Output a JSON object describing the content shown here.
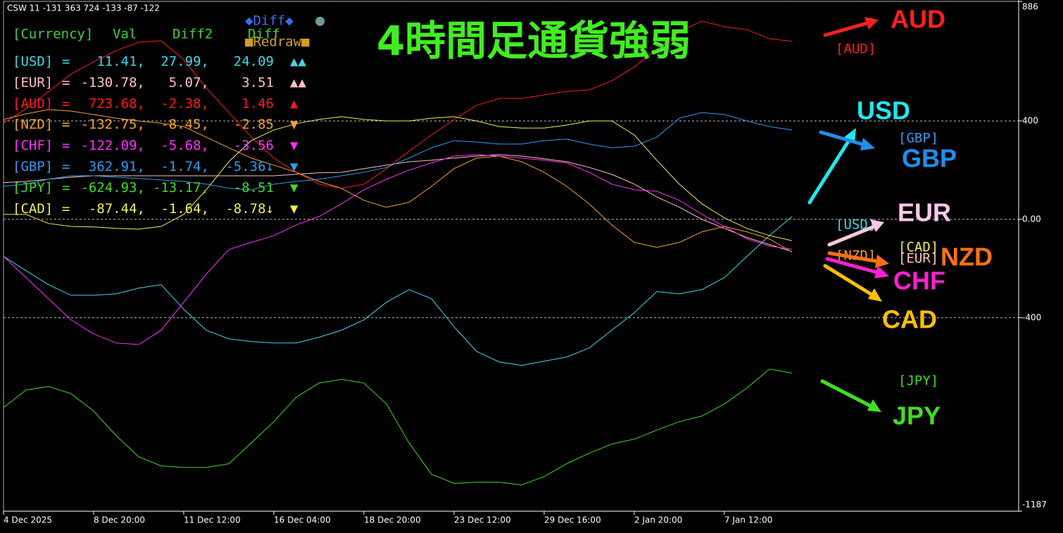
{
  "header": "CSW 11 -131 363 724 -133 -87 -122",
  "title": "4時間足通貨強弱",
  "buttons": [
    "◆Diff◆",
    "●",
    "■Redraw■"
  ],
  "table": {
    "columns": [
      "[Currency]",
      "Val",
      "Diff2",
      "Diff"
    ],
    "rows": [
      [
        "=",
        "11.41,",
        "27.99,",
        "24.09",
        "▲▲"
      ],
      [
        "=",
        "-130.78,",
        "5.07,",
        "3.51",
        "▲▲"
      ],
      [
        "=",
        "723.68,",
        "-2.38,",
        "1.46",
        "▲"
      ],
      [
        "=",
        "-132.75,",
        "-8.45,",
        "-2.85",
        "▼"
      ],
      [
        "=",
        "-122.09,",
        "-5.68,",
        "-3.56",
        "▼"
      ],
      [
        "=",
        "362.91,",
        "-1.74,",
        "-5.36↓",
        "▼"
      ],
      [
        "=",
        "-624.93,",
        "-13.17,",
        "-8.51",
        "▼"
      ],
      [
        "=",
        "-87.44,",
        "-1.64,",
        "-8.78↓",
        "▼"
      ]
    ]
  },
  "annotations": [
    "AUD",
    "USD",
    "GBP",
    "EUR",
    "NZD",
    "CHF",
    "CAD",
    "JPY"
  ],
  "chart_data": {
    "type": "line",
    "categories": [
      "4 Dec 2025",
      null,
      null,
      null,
      "8 Dec 20:00",
      null,
      null,
      null,
      "11 Dec 12:00",
      null,
      null,
      null,
      "16 Dec 04:00",
      null,
      null,
      null,
      "18 Dec 20:00",
      null,
      null,
      null,
      "23 Dec 12:00",
      null,
      null,
      null,
      "29 Dec 16:00",
      null,
      null,
      null,
      "2 Jan 20:00",
      null,
      null,
      null,
      "7 Jan 12:00",
      null,
      null,
      null
    ],
    "series": [
      {
        "name": "[USD]",
        "color": "#3fd8e8",
        "values": [
          -151,
          -209,
          -266,
          -309,
          -309,
          -303,
          -280,
          -266,
          -366,
          -451,
          -486,
          -497,
          -503,
          -503,
          -480,
          -451,
          -409,
          -337,
          -286,
          -323,
          -437,
          -537,
          -580,
          -594,
          -577,
          -560,
          -523,
          -451,
          -380,
          -294,
          -303,
          -286,
          -237,
          -151,
          -66,
          11
        ]
      },
      {
        "name": "[EUR]",
        "color": "#ffc0c0",
        "values": [
          149,
          154,
          163,
          171,
          177,
          177,
          177,
          177,
          177,
          177,
          177,
          177,
          177,
          183,
          189,
          191,
          206,
          220,
          234,
          240,
          249,
          257,
          263,
          257,
          246,
          234,
          211,
          183,
          143,
          91,
          49,
          0,
          -37,
          -74,
          -103,
          -131
        ]
      },
      {
        "name": "[AUD]",
        "color": "#ff1a1a",
        "values": [
          391,
          449,
          520,
          591,
          640,
          686,
          720,
          726,
          649,
          534,
          434,
          334,
          249,
          191,
          143,
          126,
          143,
          206,
          277,
          343,
          406,
          463,
          491,
          491,
          506,
          520,
          526,
          563,
          620,
          691,
          763,
          806,
          783,
          771,
          734,
          724
        ]
      },
      {
        "name": "[NZD]",
        "color": "#f5a030",
        "values": [
          406,
          429,
          446,
          440,
          426,
          411,
          400,
          391,
          377,
          334,
          291,
          249,
          220,
          191,
          154,
          126,
          77,
          49,
          69,
          134,
          206,
          249,
          257,
          234,
          191,
          134,
          63,
          -23,
          -94,
          -114,
          -94,
          -51,
          -29,
          -51,
          -80,
          -133
        ]
      },
      {
        "name": "[CHF]",
        "color": "#ff30ff",
        "values": [
          -151,
          -237,
          -323,
          -409,
          -466,
          -503,
          -509,
          -451,
          -337,
          -223,
          -123,
          -94,
          -66,
          -23,
          11,
          63,
          120,
          163,
          200,
          229,
          257,
          263,
          257,
          249,
          240,
          229,
          191,
          143,
          120,
          114,
          77,
          20,
          -29,
          -80,
          -109,
          -122
        ]
      },
      {
        "name": "[GBP]",
        "color": "#2e9cf0",
        "values": [
          134,
          143,
          163,
          177,
          177,
          171,
          166,
          160,
          154,
          143,
          126,
          120,
          143,
          154,
          163,
          177,
          191,
          211,
          249,
          291,
          320,
          314,
          306,
          306,
          320,
          326,
          306,
          291,
          297,
          334,
          411,
          434,
          426,
          400,
          377,
          363
        ]
      },
      {
        "name": "[JPY]",
        "color": "#3ddc20",
        "values": [
          -766,
          -694,
          -680,
          -709,
          -780,
          -880,
          -966,
          -1003,
          -1009,
          -1009,
          -994,
          -909,
          -823,
          -723,
          -666,
          -651,
          -666,
          -751,
          -909,
          -1037,
          -1074,
          -1069,
          -1069,
          -1080,
          -1046,
          -994,
          -951,
          -914,
          -894,
          -857,
          -823,
          -800,
          -751,
          -686,
          -609,
          -625
        ]
      },
      {
        "name": "[CAD]",
        "color": "#f0f050",
        "values": [
          20,
          20,
          -17,
          -29,
          -31,
          -37,
          -40,
          -29,
          20,
          120,
          234,
          320,
          363,
          389,
          406,
          417,
          406,
          400,
          400,
          411,
          417,
          400,
          377,
          371,
          371,
          383,
          400,
          400,
          343,
          240,
          143,
          63,
          6,
          -37,
          -66,
          -87
        ]
      }
    ],
    "ylim": [
      -1187,
      886
    ],
    "yticks": [
      886,
      400,
      {
        "value": 0,
        "label": "0.00"
      },
      -400,
      -1187
    ],
    "grid": true
  }
}
